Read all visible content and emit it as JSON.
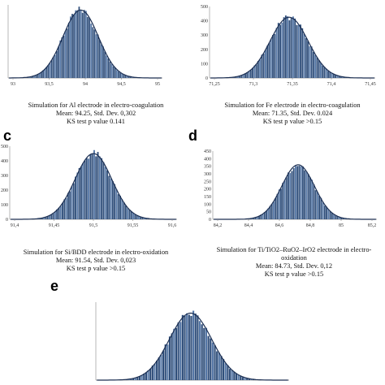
{
  "colors": {
    "bar": "#2f4e7a",
    "bar_light": "#5577a6",
    "curve": "#1c2f52",
    "axis": "#888888"
  },
  "chart_data": [
    {
      "type": "bar",
      "panel_label": "",
      "x_ticks": [
        "93",
        "93,5",
        "94",
        "94,5",
        "95"
      ],
      "y_ticks": [],
      "center": 0.47,
      "spread": 0.115,
      "peak": 0.93,
      "caption": [
        "Simulation for Al electrode in electro-coagulation",
        "Mean: 94.25, Std. Dev. 0,302",
        "KS test p value 0.141"
      ]
    },
    {
      "type": "bar",
      "panel_label": "",
      "x_ticks": [
        "71,25",
        "71,3",
        "71,35",
        "71,4",
        "71,45"
      ],
      "y_ticks": [
        "0",
        "100",
        "200",
        "300",
        "400",
        "500"
      ],
      "center": 0.48,
      "spread": 0.115,
      "peak": 0.85,
      "caption": [
        "Simulation for Fe electrode in electro-coagulation",
        "Mean: 71.35, Std. Dev. 0.024",
        "KS test p value >0.15"
      ]
    },
    {
      "type": "bar",
      "panel_label": "c",
      "x_ticks": [
        "91,4",
        "91,45",
        "91,5",
        "91,55",
        "91,6"
      ],
      "y_ticks": [
        "0",
        "100",
        "200",
        "300",
        "400",
        "500"
      ],
      "center": 0.5,
      "spread": 0.11,
      "peak": 0.9,
      "caption": [
        "Simulation for Si/BDD electrode in electro-oxidation",
        "Mean: 91.54, Std. Dev. 0,023",
        "KS test p value >0.15"
      ]
    },
    {
      "type": "bar",
      "panel_label": "d",
      "x_ticks": [
        "84,2",
        "84,4",
        "84,6",
        "84,8",
        "85",
        "85,2"
      ],
      "y_ticks": [
        "0",
        "50",
        "100",
        "150",
        "200",
        "250",
        "300",
        "350",
        "400",
        "450"
      ],
      "center": 0.52,
      "spread": 0.1,
      "peak": 0.8,
      "caption": [
        "Simulation for Ti/TiO2–RuO2–IrO2 electrode in electro-",
        "oxidation",
        "Mean: 84.73, Std. Dev. 0,12",
        "KS test p value >0.15"
      ]
    },
    {
      "type": "bar",
      "panel_label": "e",
      "x_ticks": [],
      "y_ticks": [],
      "center": 0.49,
      "spread": 0.11,
      "peak": 0.86,
      "caption": []
    }
  ]
}
